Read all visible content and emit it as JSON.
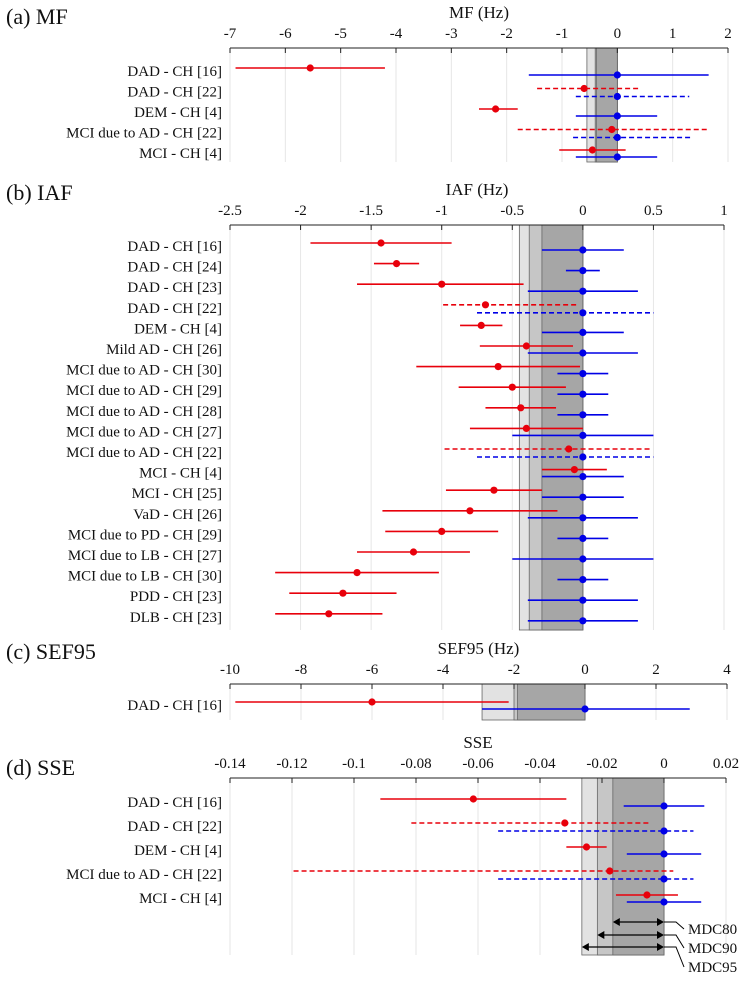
{
  "chart_data": [
    {
      "type": "forest",
      "panel_label": "(a) MF",
      "xlabel": "MF (Hz)",
      "xlim": [
        -7,
        2
      ],
      "xticks": [
        -7,
        -6,
        -5,
        -4,
        -3,
        -2,
        -1,
        0,
        1,
        2
      ],
      "mdc_bands": [
        -0.55,
        -0.4,
        -0.38
      ],
      "rows": [
        {
          "label": "DAD - CH [16]",
          "red": {
            "v": -5.55,
            "lo": -6.9,
            "hi": -4.2,
            "dash": false
          },
          "blue": {
            "v": 0.0,
            "lo": -1.6,
            "hi": 1.65,
            "dash": false
          }
        },
        {
          "label": "DAD - CH [22]",
          "red": {
            "v": -0.6,
            "lo": -1.45,
            "hi": 0.4,
            "dash": true
          },
          "blue": {
            "v": 0.0,
            "lo": -0.75,
            "hi": 1.3,
            "dash": true
          }
        },
        {
          "label": "DEM - CH [4]",
          "red": {
            "v": -2.2,
            "lo": -2.5,
            "hi": -1.8,
            "dash": false
          },
          "blue": {
            "v": 0.0,
            "lo": -0.75,
            "hi": 0.72,
            "dash": false
          }
        },
        {
          "label": "MCI due to AD - CH [22]",
          "red": {
            "v": -0.1,
            "lo": -1.8,
            "hi": 1.65,
            "dash": true
          },
          "blue": {
            "v": 0.0,
            "lo": -0.8,
            "hi": 1.35,
            "dash": true
          }
        },
        {
          "label": "MCI - CH [4]",
          "red": {
            "v": -0.45,
            "lo": -1.05,
            "hi": 0.15,
            "dash": false
          },
          "blue": {
            "v": 0.0,
            "lo": -0.75,
            "hi": 0.72,
            "dash": false
          }
        }
      ]
    },
    {
      "type": "forest",
      "panel_label": "(b) IAF",
      "xlabel": "IAF (Hz)",
      "xlim": [
        -2.5,
        1
      ],
      "xticks": [
        -2.5,
        -2,
        -1.5,
        -1,
        -0.5,
        0,
        0.5,
        1
      ],
      "mdc_bands": [
        -0.45,
        -0.38,
        -0.29
      ],
      "rows": [
        {
          "label": "DAD - CH [16]",
          "red": {
            "v": -1.43,
            "lo": -1.93,
            "hi": -0.93,
            "dash": false
          },
          "blue": {
            "v": 0.0,
            "lo": -0.29,
            "hi": 0.29,
            "dash": false
          }
        },
        {
          "label": "DAD - CH [24]",
          "red": {
            "v": -1.32,
            "lo": -1.48,
            "hi": -1.16,
            "dash": false
          },
          "blue": {
            "v": 0.0,
            "lo": -0.12,
            "hi": 0.12,
            "dash": false
          }
        },
        {
          "label": "DAD - CH [23]",
          "red": {
            "v": -1.0,
            "lo": -1.6,
            "hi": -0.42,
            "dash": false
          },
          "blue": {
            "v": 0.0,
            "lo": -0.39,
            "hi": 0.39,
            "dash": false
          }
        },
        {
          "label": "DAD - CH [22]",
          "red": {
            "v": -0.69,
            "lo": -0.99,
            "hi": -0.04,
            "dash": true
          },
          "blue": {
            "v": 0.0,
            "lo": -0.75,
            "hi": 0.5,
            "dash": true
          }
        },
        {
          "label": "DEM - CH [4]",
          "red": {
            "v": -0.72,
            "lo": -0.87,
            "hi": -0.57,
            "dash": false
          },
          "blue": {
            "v": 0.0,
            "lo": -0.29,
            "hi": 0.29,
            "dash": false
          }
        },
        {
          "label": "Mild AD - CH [26]",
          "red": {
            "v": -0.4,
            "lo": -0.73,
            "hi": -0.07,
            "dash": false
          },
          "blue": {
            "v": 0.0,
            "lo": -0.39,
            "hi": 0.39,
            "dash": false
          }
        },
        {
          "label": "MCI due to AD - CH [30]",
          "red": {
            "v": -0.6,
            "lo": -1.18,
            "hi": -0.02,
            "dash": false
          },
          "blue": {
            "v": 0.0,
            "lo": -0.18,
            "hi": 0.18,
            "dash": false
          }
        },
        {
          "label": "MCI due to AD - CH [29]",
          "red": {
            "v": -0.5,
            "lo": -0.88,
            "hi": -0.12,
            "dash": false
          },
          "blue": {
            "v": 0.0,
            "lo": -0.18,
            "hi": 0.18,
            "dash": false
          }
        },
        {
          "label": "MCI due to AD - CH [28]",
          "red": {
            "v": -0.44,
            "lo": -0.69,
            "hi": -0.19,
            "dash": false
          },
          "blue": {
            "v": 0.0,
            "lo": -0.18,
            "hi": 0.18,
            "dash": false
          }
        },
        {
          "label": "MCI due to AD - CH [27]",
          "red": {
            "v": -0.4,
            "lo": -0.8,
            "hi": -0.0,
            "dash": false
          },
          "blue": {
            "v": 0.0,
            "lo": -0.5,
            "hi": 0.5,
            "dash": false
          }
        },
        {
          "label": "MCI due to AD - CH [22]",
          "red": {
            "v": -0.1,
            "lo": -0.98,
            "hi": 0.48,
            "dash": true
          },
          "blue": {
            "v": 0.0,
            "lo": -0.75,
            "hi": 0.5,
            "dash": true
          }
        },
        {
          "label": "MCI - CH [4]",
          "red": {
            "v": -0.06,
            "lo": -0.29,
            "hi": 0.17,
            "dash": false
          },
          "blue": {
            "v": 0.0,
            "lo": -0.29,
            "hi": 0.29,
            "dash": false
          }
        },
        {
          "label": "MCI - CH [25]",
          "red": {
            "v": -0.63,
            "lo": -0.97,
            "hi": -0.29,
            "dash": false
          },
          "blue": {
            "v": 0.0,
            "lo": -0.29,
            "hi": 0.29,
            "dash": false
          }
        },
        {
          "label": "VaD - CH [26]",
          "red": {
            "v": -0.8,
            "lo": -1.42,
            "hi": -0.18,
            "dash": false
          },
          "blue": {
            "v": 0.0,
            "lo": -0.39,
            "hi": 0.39,
            "dash": false
          }
        },
        {
          "label": "MCI due to PD - CH [29]",
          "red": {
            "v": -1.0,
            "lo": -1.4,
            "hi": -0.6,
            "dash": false
          },
          "blue": {
            "v": 0.0,
            "lo": -0.18,
            "hi": 0.18,
            "dash": false
          }
        },
        {
          "label": "MCI due to LB - CH [27]",
          "red": {
            "v": -1.2,
            "lo": -1.6,
            "hi": -0.8,
            "dash": false
          },
          "blue": {
            "v": 0.0,
            "lo": -0.5,
            "hi": 0.5,
            "dash": false
          }
        },
        {
          "label": "MCI due to  LB - CH [30]",
          "red": {
            "v": -1.6,
            "lo": -2.18,
            "hi": -1.02,
            "dash": false
          },
          "blue": {
            "v": 0.0,
            "lo": -0.18,
            "hi": 0.18,
            "dash": false
          }
        },
        {
          "label": "PDD - CH [23]",
          "red": {
            "v": -1.7,
            "lo": -2.08,
            "hi": -1.32,
            "dash": false
          },
          "blue": {
            "v": 0.0,
            "lo": -0.39,
            "hi": 0.39,
            "dash": false
          }
        },
        {
          "label": "DLB - CH [23]",
          "red": {
            "v": -1.8,
            "lo": -2.18,
            "hi": -1.42,
            "dash": false
          },
          "blue": {
            "v": 0.0,
            "lo": -0.39,
            "hi": 0.39,
            "dash": false
          }
        }
      ]
    },
    {
      "type": "forest",
      "panel_label": "(c) SEF95",
      "xlabel": "SEF95 (Hz)",
      "xlim": [
        -10,
        4
      ],
      "xticks": [
        -10,
        -8,
        -6,
        -4,
        -2,
        0,
        2,
        4
      ],
      "mdc_bands": [
        -2.9,
        -2.0,
        -1.9
      ],
      "rows": [
        {
          "label": "DAD - CH [16]",
          "red": {
            "v": -6.0,
            "lo": -9.85,
            "hi": -2.15,
            "dash": false
          },
          "blue": {
            "v": 0.0,
            "lo": -2.9,
            "hi": 2.95,
            "dash": false
          }
        }
      ]
    },
    {
      "type": "forest",
      "panel_label": "(d) SSE",
      "xlabel": "SSE",
      "xlim": [
        -0.14,
        0.02
      ],
      "xticks": [
        -0.14,
        -0.12,
        -0.1,
        -0.08,
        -0.06,
        -0.04,
        -0.02,
        0,
        0.02
      ],
      "xtick_labels": [
        "-0.14",
        "-0.12",
        "-0.1",
        "-0.08",
        "-0.06",
        "-0.04",
        "-0.02",
        "0",
        "0.02"
      ],
      "mdc_bands": [
        -0.0265,
        -0.0215,
        -0.0165
      ],
      "mdc_labels": [
        "MDC80",
        "MDC90",
        "MDC95"
      ],
      "rows": [
        {
          "label": "DAD - CH [16]",
          "red": {
            "v": -0.0615,
            "lo": -0.0915,
            "hi": -0.0315,
            "dash": false
          },
          "blue": {
            "v": 0.0,
            "lo": -0.013,
            "hi": 0.013,
            "dash": false
          }
        },
        {
          "label": "DAD - CH [22]",
          "red": {
            "v": -0.032,
            "lo": -0.0815,
            "hi": -0.0045,
            "dash": true
          },
          "blue": {
            "v": 0.0,
            "lo": -0.0535,
            "hi": 0.0095,
            "dash": true
          }
        },
        {
          "label": "DEM - CH [4]",
          "red": {
            "v": -0.025,
            "lo": -0.0315,
            "hi": -0.0185,
            "dash": false
          },
          "blue": {
            "v": 0.0,
            "lo": -0.012,
            "hi": 0.012,
            "dash": false
          }
        },
        {
          "label": "MCI due to AD - CH [22]",
          "red": {
            "v": -0.0175,
            "lo": -0.1195,
            "hi": 0.003,
            "dash": true
          },
          "blue": {
            "v": 0.0,
            "lo": -0.0535,
            "hi": 0.0095,
            "dash": true
          }
        },
        {
          "label": "MCI - CH [4]",
          "red": {
            "v": -0.0055,
            "lo": -0.0155,
            "hi": 0.0045,
            "dash": false
          },
          "blue": {
            "v": 0.0,
            "lo": -0.012,
            "hi": 0.012,
            "dash": false
          }
        }
      ]
    }
  ],
  "colors": {
    "red": "#e8000b",
    "blue": "#0000e6",
    "band80": "#e2e2e2",
    "band90": "#c6c6c6",
    "band95": "#a6a6a6",
    "grid": "#e6e6e6"
  }
}
